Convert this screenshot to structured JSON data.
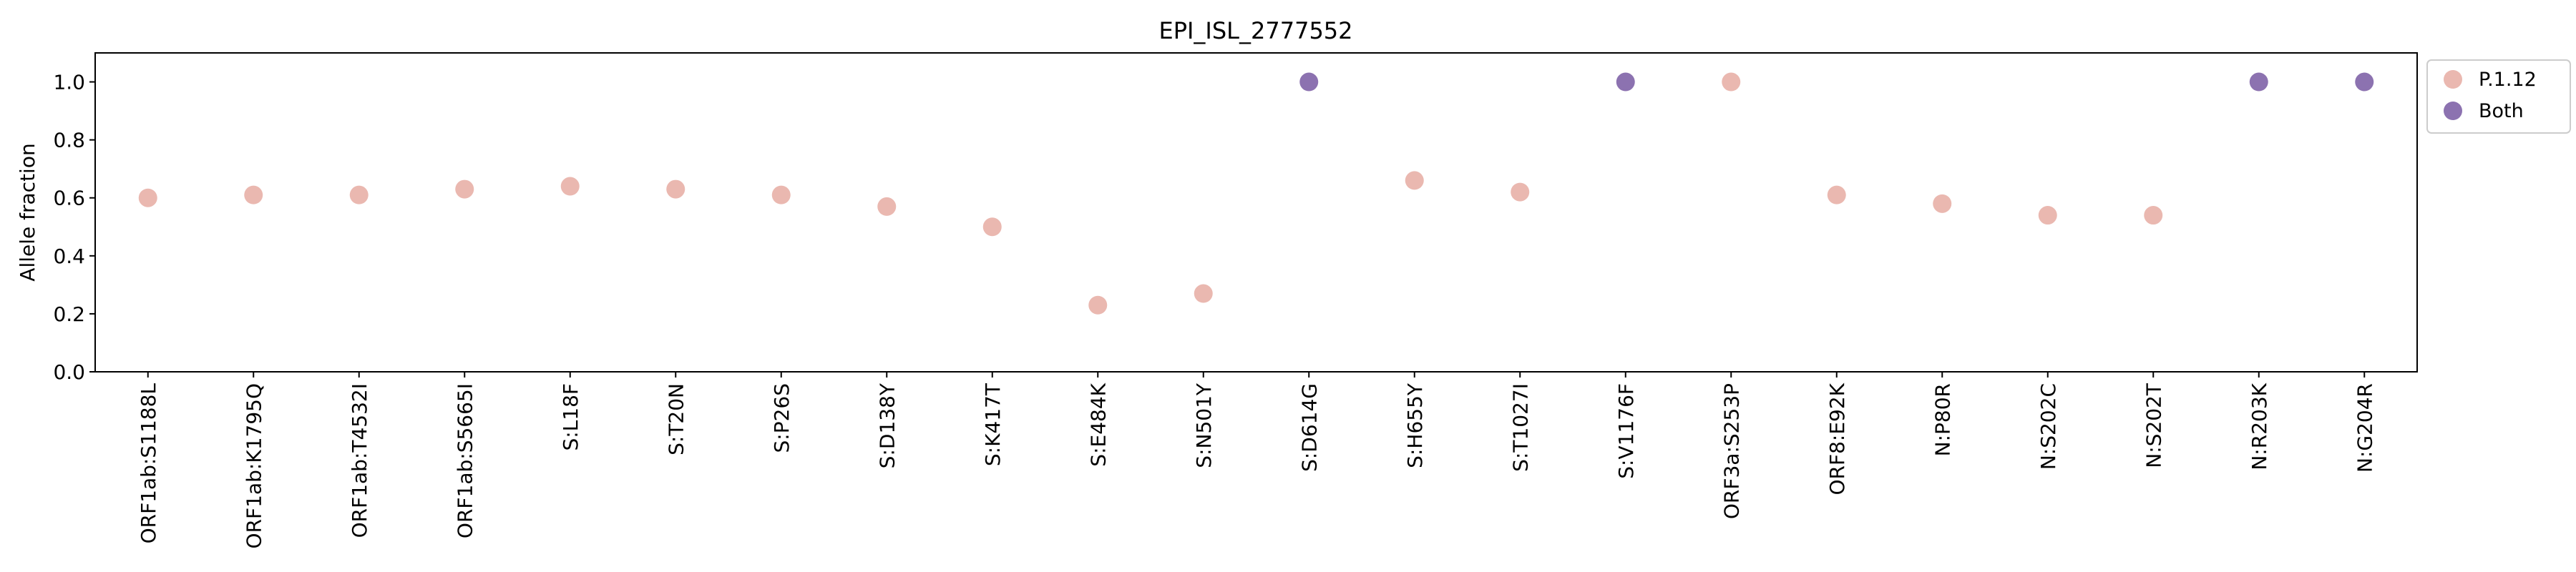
{
  "chart_data": {
    "type": "scatter",
    "title": "EPI_ISL_2777552",
    "xlabel": "",
    "ylabel": "Allele fraction",
    "ylim": [
      0,
      1.1
    ],
    "yticks": [
      "0.0",
      "0.2",
      "0.4",
      "0.6",
      "0.8",
      "1.0"
    ],
    "grid": false,
    "legend_position": "outside-top-right",
    "categories": [
      "ORF1ab:S1188L",
      "ORF1ab:K1795Q",
      "ORF1ab:T4532I",
      "ORF1ab:S5665I",
      "S:L18F",
      "S:T20N",
      "S:P26S",
      "S:D138Y",
      "S:K417T",
      "S:E484K",
      "S:N501Y",
      "S:D614G",
      "S:H655Y",
      "S:T1027I",
      "S:V1176F",
      "ORF3a:S253P",
      "ORF8:E92K",
      "N:P80R",
      "N:S202C",
      "N:S202T",
      "N:R203K",
      "N:G204R"
    ],
    "series": [
      {
        "name": "P.1.12",
        "color": "#eab8b0",
        "points": [
          {
            "x": "ORF1ab:S1188L",
            "y": 0.6
          },
          {
            "x": "ORF1ab:K1795Q",
            "y": 0.61
          },
          {
            "x": "ORF1ab:T4532I",
            "y": 0.61
          },
          {
            "x": "ORF1ab:S5665I",
            "y": 0.63
          },
          {
            "x": "S:L18F",
            "y": 0.64
          },
          {
            "x": "S:T20N",
            "y": 0.63
          },
          {
            "x": "S:P26S",
            "y": 0.61
          },
          {
            "x": "S:D138Y",
            "y": 0.57
          },
          {
            "x": "S:K417T",
            "y": 0.5
          },
          {
            "x": "S:E484K",
            "y": 0.23
          },
          {
            "x": "S:N501Y",
            "y": 0.27
          },
          {
            "x": "S:H655Y",
            "y": 0.66
          },
          {
            "x": "S:T1027I",
            "y": 0.62
          },
          {
            "x": "ORF3a:S253P",
            "y": 1.0
          },
          {
            "x": "ORF8:E92K",
            "y": 0.61
          },
          {
            "x": "N:P80R",
            "y": 0.58
          },
          {
            "x": "N:S202C",
            "y": 0.54
          },
          {
            "x": "N:S202T",
            "y": 0.54
          }
        ]
      },
      {
        "name": "Both",
        "color": "#8c72b0",
        "points": [
          {
            "x": "S:D614G",
            "y": 1.0
          },
          {
            "x": "S:V1176F",
            "y": 1.0
          },
          {
            "x": "N:R203K",
            "y": 1.0
          },
          {
            "x": "N:G204R",
            "y": 1.0
          }
        ]
      }
    ]
  }
}
